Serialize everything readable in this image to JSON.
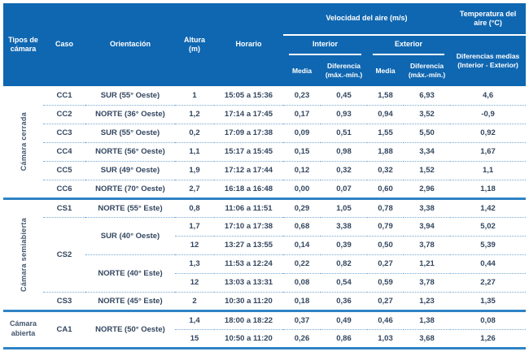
{
  "colors": {
    "header_bg": "#0f67b1",
    "sep": "#2f83c5",
    "dot": "#74a9d4",
    "txt": "#33465f"
  },
  "header": {
    "tipos": "Tipos de cámara",
    "caso": "Caso",
    "orientacion": "Orientación",
    "altura": "Altura (m)",
    "horario": "Horario",
    "velocidad": "Velocidad del aire (m/s)",
    "temperatura": "Temperatura del aire (°C)",
    "interior": "Interior",
    "exterior": "Exterior",
    "media": "Media",
    "diferencia": "Diferencia (máx.-mín.)",
    "dif_medias": "Diferencias medias (Interior - Exterior)"
  },
  "table": {
    "groups": [
      {
        "label": "Cámara cerrada",
        "vertical": true,
        "rows": [
          {
            "caso": "CC1",
            "orient": "SUR (55° Oeste)",
            "altura": "1",
            "horario": "15:05 a 15:36",
            "vi_media": "0,23",
            "vi_dif": "0,45",
            "ve_media": "1,58",
            "ve_dif": "6,93",
            "temp": "4,6"
          },
          {
            "caso": "CC2",
            "orient": "NORTE (36° Oeste)",
            "altura": "1,2",
            "horario": "17:14 a 17:45",
            "vi_media": "0,17",
            "vi_dif": "0,93",
            "ve_media": "0,94",
            "ve_dif": "3,52",
            "temp": "-0,9"
          },
          {
            "caso": "CC3",
            "orient": "SUR (55° Oeste)",
            "altura": "0,2",
            "horario": "17:09 a 17:38",
            "vi_media": "0,09",
            "vi_dif": "0,51",
            "ve_media": "1,55",
            "ve_dif": "5,50",
            "temp": "0,92"
          },
          {
            "caso": "CC4",
            "orient": "NORTE (56° Oeste)",
            "altura": "1,1",
            "horario": "15:17 a 15:45",
            "vi_media": "0,15",
            "vi_dif": "0,98",
            "ve_media": "1,88",
            "ve_dif": "3,34",
            "temp": "1,67"
          },
          {
            "caso": "CC5",
            "orient": "SUR (49° Oeste)",
            "altura": "1,9",
            "horario": "17:12 a 17:44",
            "vi_media": "0,12",
            "vi_dif": "0,32",
            "ve_media": "0,32",
            "ve_dif": "1,52",
            "temp": "1,1"
          },
          {
            "caso": "CC6",
            "orient": "NORTE (70° Oeste)",
            "altura": "2,7",
            "horario": "16:18 a 16:48",
            "vi_media": "0,00",
            "vi_dif": "0,07",
            "ve_media": "0,60",
            "ve_dif": "2,96",
            "temp": "1,18"
          }
        ]
      },
      {
        "label": "Cámara semiabierta",
        "vertical": true,
        "rows": [
          {
            "caso": "CS1",
            "orient": "NORTE (55° Este)",
            "altura": "0,8",
            "horario": "11:06 a 11:51",
            "vi_media": "0,29",
            "vi_dif": "1,05",
            "ve_media": "0,78",
            "ve_dif": "3,38",
            "temp": "1,42"
          },
          {
            "caso": "CS2",
            "caso_span": 4,
            "orient": "SUR (40° Oeste)",
            "orient_span": 2,
            "altura": "1,7",
            "horario": "17:10 a 17:38",
            "vi_media": "0,68",
            "vi_dif": "3,38",
            "ve_media": "0,79",
            "ve_dif": "3,94",
            "temp": "5,02"
          },
          {
            "altura": "12",
            "horario": "13:27 a 13:55",
            "vi_media": "0,14",
            "vi_dif": "0,39",
            "ve_media": "0,50",
            "ve_dif": "3,78",
            "temp": "5,39"
          },
          {
            "orient": "NORTE (40° Este)",
            "orient_span": 2,
            "altura": "1,3",
            "horario": "11:53 a 12:24",
            "vi_media": "0,22",
            "vi_dif": "0,82",
            "ve_media": "0,27",
            "ve_dif": "1,21",
            "temp": "0,44"
          },
          {
            "altura": "12",
            "horario": "13:03 a 13:31",
            "vi_media": "0,08",
            "vi_dif": "0,54",
            "ve_media": "0,59",
            "ve_dif": "3,78",
            "temp": "2,27"
          },
          {
            "caso": "CS3",
            "orient": "NORTE (45° Este)",
            "altura": "2",
            "horario": "10:30 a 11:20",
            "vi_media": "0,18",
            "vi_dif": "0,36",
            "ve_media": "0,27",
            "ve_dif": "1,23",
            "temp": "1,35"
          }
        ]
      },
      {
        "label": "Cámara abierta",
        "vertical": false,
        "rows": [
          {
            "caso": "CA1",
            "caso_span": 2,
            "orient": "NORTE (50° Oeste)",
            "orient_span": 2,
            "altura": "1,4",
            "horario": "18:00 a 18:22",
            "vi_media": "0,37",
            "vi_dif": "0,49",
            "ve_media": "0,46",
            "ve_dif": "1,38",
            "temp": "0,08"
          },
          {
            "altura": "15",
            "horario": "10:50 a 11:20",
            "vi_media": "0,26",
            "vi_dif": "0,86",
            "ve_media": "1,03",
            "ve_dif": "3,68",
            "temp": "1,26"
          }
        ]
      }
    ]
  }
}
